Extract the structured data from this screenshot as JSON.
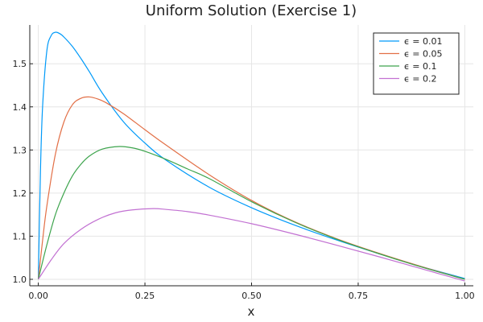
{
  "chart_data": {
    "type": "line",
    "title": "Uniform Solution (Exercise 1)",
    "xlabel": "x",
    "ylabel": "",
    "xlim": [
      -0.02,
      1.02
    ],
    "ylim": [
      0.985,
      1.59
    ],
    "x_ticks": [
      0.0,
      0.25,
      0.5,
      0.75,
      1.0
    ],
    "x_tick_labels": [
      "0.00",
      "0.25",
      "0.50",
      "0.75",
      "1.00"
    ],
    "y_ticks": [
      1.0,
      1.1,
      1.2,
      1.3,
      1.4,
      1.5
    ],
    "y_tick_labels": [
      "1.0",
      "1.1",
      "1.2",
      "1.3",
      "1.4",
      "1.5"
    ],
    "grid": true,
    "legend_position": "top-right",
    "series": [
      {
        "name": "ϵ = 0.01",
        "color": "#009af9",
        "x": [
          0.0,
          0.005,
          0.01,
          0.02,
          0.03,
          0.04,
          0.05,
          0.06,
          0.08,
          0.1,
          0.12,
          0.15,
          0.2,
          0.25,
          0.3,
          0.4,
          0.5,
          0.6,
          0.7,
          0.8,
          0.9,
          1.0
        ],
        "y": [
          1.0,
          1.25,
          1.4,
          1.53,
          1.565,
          1.573,
          1.57,
          1.562,
          1.54,
          1.512,
          1.481,
          1.432,
          1.365,
          1.316,
          1.276,
          1.214,
          1.166,
          1.126,
          1.091,
          1.059,
          1.029,
          1.002
        ]
      },
      {
        "name": "ϵ = 0.05",
        "color": "#e26f46",
        "x": [
          0.0,
          0.01,
          0.02,
          0.04,
          0.06,
          0.08,
          0.1,
          0.12,
          0.14,
          0.16,
          0.2,
          0.25,
          0.3,
          0.4,
          0.5,
          0.6,
          0.7,
          0.8,
          0.9,
          1.0
        ],
        "y": [
          1.0,
          1.09,
          1.17,
          1.29,
          1.365,
          1.405,
          1.42,
          1.423,
          1.418,
          1.409,
          1.384,
          1.347,
          1.311,
          1.243,
          1.183,
          1.134,
          1.094,
          1.06,
          1.029,
          1.0
        ]
      },
      {
        "name": "ϵ = 0.1",
        "color": "#3da44d",
        "x": [
          0.0,
          0.02,
          0.04,
          0.06,
          0.08,
          0.1,
          0.12,
          0.15,
          0.19,
          0.22,
          0.25,
          0.3,
          0.35,
          0.4,
          0.5,
          0.6,
          0.7,
          0.8,
          0.9,
          1.0
        ],
        "y": [
          1.0,
          1.08,
          1.15,
          1.2,
          1.24,
          1.267,
          1.286,
          1.302,
          1.308,
          1.305,
          1.297,
          1.278,
          1.256,
          1.234,
          1.18,
          1.133,
          1.093,
          1.059,
          1.028,
          1.0
        ]
      },
      {
        "name": "ϵ = 0.2",
        "color": "#c271d2",
        "x": [
          0.0,
          0.03,
          0.06,
          0.1,
          0.14,
          0.18,
          0.22,
          0.27,
          0.3,
          0.35,
          0.4,
          0.5,
          0.6,
          0.7,
          0.8,
          0.9,
          1.0
        ],
        "y": [
          1.0,
          1.045,
          1.083,
          1.116,
          1.139,
          1.154,
          1.161,
          1.164,
          1.162,
          1.157,
          1.149,
          1.129,
          1.105,
          1.079,
          1.052,
          1.024,
          0.996
        ]
      }
    ]
  }
}
